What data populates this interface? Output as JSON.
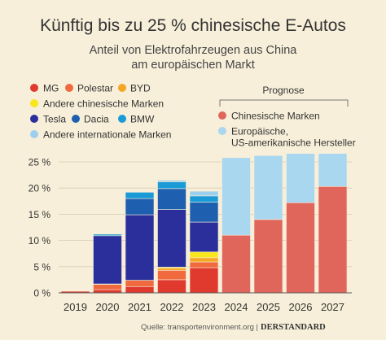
{
  "header": {
    "title": "Künftig bis zu 25 % chinesische E-Autos",
    "subtitle_line1": "Anteil von Elektrofahrzeugen aus China",
    "subtitle_line2": "am europäischen Markt"
  },
  "legend": {
    "row1": [
      {
        "name": "MG",
        "color": "#e03a2f"
      },
      {
        "name": "Polestar",
        "color": "#f06a3e"
      },
      {
        "name": "BYD",
        "color": "#f5a623"
      }
    ],
    "row2": [
      {
        "name": "Andere chinesische Marken",
        "color": "#f8e71c"
      }
    ],
    "row3": [
      {
        "name": "Tesla",
        "color": "#2a2f9c"
      },
      {
        "name": "Dacia",
        "color": "#1f5fb0"
      },
      {
        "name": "BMW",
        "color": "#1a9ad6"
      }
    ],
    "row4": [
      {
        "name": "Andere internationale Marken",
        "color": "#9dd0ec"
      }
    ]
  },
  "prognose": {
    "label": "Prognose",
    "items": [
      {
        "name": "Chinesische Marken",
        "color": "#e0665c"
      },
      {
        "name_line1": "Europäische,",
        "name_line2": "US-amerikanische Hersteller",
        "color": "#a9d7ef"
      }
    ]
  },
  "chart_data": {
    "type": "bar",
    "stacked": true,
    "categories": [
      "2019",
      "2020",
      "2021",
      "2022",
      "2023",
      "2024",
      "2025",
      "2026",
      "2027"
    ],
    "ylim": [
      0,
      25
    ],
    "yticks": [
      "0 %",
      "5 %",
      "10 %",
      "15 %",
      "20 %",
      "25 %"
    ],
    "series": [
      {
        "name": "MG",
        "color": "#e03a2f",
        "values": [
          0.3,
          0.6,
          1.2,
          2.5,
          4.8,
          0,
          0,
          0,
          0
        ]
      },
      {
        "name": "Polestar",
        "color": "#f06a3e",
        "values": [
          0,
          1.0,
          1.2,
          1.8,
          1.1,
          0,
          0,
          0,
          0
        ]
      },
      {
        "name": "BYD",
        "color": "#f5a623",
        "values": [
          0,
          0,
          0,
          0.4,
          0.8,
          0,
          0,
          0,
          0
        ]
      },
      {
        "name": "Andere chinesische Marken",
        "color": "#f8e71c",
        "values": [
          0,
          0.1,
          0,
          0.2,
          1.1,
          0,
          0,
          0,
          0
        ]
      },
      {
        "name": "Tesla",
        "color": "#2a2f9c",
        "values": [
          0,
          9.2,
          12.5,
          11.0,
          5.7,
          0,
          0,
          0,
          0
        ]
      },
      {
        "name": "Dacia",
        "color": "#1f5fb0",
        "values": [
          0,
          0,
          3.1,
          4.0,
          3.8,
          0,
          0,
          0,
          0
        ]
      },
      {
        "name": "BMW",
        "color": "#1a9ad6",
        "values": [
          0,
          0.3,
          1.2,
          1.3,
          1.2,
          0,
          0,
          0,
          0
        ]
      },
      {
        "name": "Andere internationale Marken",
        "color": "#9dd0ec",
        "values": [
          0,
          0,
          0,
          0.3,
          0.9,
          0,
          0,
          0,
          0
        ]
      },
      {
        "name": "Chinesische Marken",
        "color": "#e0665c",
        "values": [
          0,
          0,
          0,
          0,
          0,
          11.0,
          14.0,
          17.2,
          20.3
        ]
      },
      {
        "name": "Europäische, US-amerikanische Hersteller",
        "color": "#a9d7ef",
        "values": [
          0,
          0,
          0,
          0,
          0,
          14.8,
          12.2,
          9.4,
          6.3
        ]
      }
    ]
  },
  "footer": {
    "source": "Quelle: transportenvironment.org |",
    "brand": "DERSTANDARD"
  }
}
